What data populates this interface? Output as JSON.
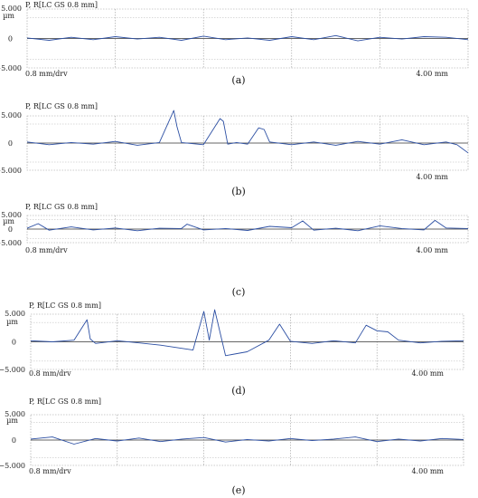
{
  "chart_data": [
    {
      "type": "line",
      "panel": "(a)",
      "title": "P, R[LC GS 0.8 mm]",
      "unit": "µm",
      "y_ticks": [
        "5.000",
        "0",
        "−5.000"
      ],
      "x_left_label": "0.8 mm/drv",
      "x_right_label": "4.00  mm",
      "xlim": [
        0,
        4.0
      ],
      "ylim": [
        -5,
        5
      ],
      "series_color": "#2c4fa3",
      "series": [
        {
          "x": [
            0,
            0.2,
            0.4,
            0.6,
            0.8,
            1.0,
            1.2,
            1.4,
            1.6,
            1.8,
            2.0,
            2.2,
            2.4,
            2.6,
            2.8,
            3.0,
            3.2,
            3.4,
            3.6,
            3.8,
            4.0
          ],
          "y": [
            0.1,
            -0.3,
            0.2,
            -0.2,
            0.3,
            -0.1,
            0.2,
            -0.3,
            0.4,
            -0.2,
            0.1,
            -0.3,
            0.3,
            -0.2,
            0.5,
            -0.4,
            0.2,
            -0.1,
            0.3,
            0.2,
            -0.2
          ]
        }
      ]
    },
    {
      "type": "line",
      "panel": "(b)",
      "title": "P, R[LC GS 0.8 mm]",
      "unit": "µm",
      "y_ticks": [
        "5.000",
        "0",
        "−5.000"
      ],
      "x_left_label": "",
      "x_right_label": "4.00  mm",
      "xlim": [
        0,
        4.0
      ],
      "ylim": [
        -5,
        5
      ],
      "series_color": "#2c4fa3",
      "series": [
        {
          "x": [
            0,
            0.2,
            0.4,
            0.6,
            0.8,
            1.0,
            1.2,
            1.33,
            1.36,
            1.4,
            1.6,
            1.75,
            1.78,
            1.82,
            1.9,
            2.0,
            2.1,
            2.15,
            2.2,
            2.4,
            2.6,
            2.8,
            3.0,
            3.2,
            3.4,
            3.6,
            3.8,
            3.9,
            4.0
          ],
          "y": [
            0.2,
            -0.3,
            0.1,
            -0.2,
            0.3,
            -0.4,
            0.1,
            6.0,
            3.0,
            0.1,
            -0.3,
            4.5,
            4.0,
            -0.2,
            0.1,
            -0.2,
            2.8,
            2.5,
            0.2,
            -0.3,
            0.2,
            -0.4,
            0.3,
            -0.2,
            0.6,
            -0.3,
            0.2,
            -0.3,
            -1.8
          ]
        }
      ]
    },
    {
      "type": "line",
      "panel": "(c)",
      "title": "P, R[LC GS 0.8 mm]",
      "unit": "µm",
      "y_ticks": [
        "5.000",
        "0",
        "−5.000"
      ],
      "x_left_label": "0.8 mm/drv",
      "x_right_label": "4.00  mm",
      "xlim": [
        0,
        4.0
      ],
      "ylim": [
        -5,
        5
      ],
      "series_color": "#2c4fa3",
      "series": [
        {
          "x": [
            0,
            0.1,
            0.2,
            0.4,
            0.6,
            0.8,
            1.0,
            1.2,
            1.4,
            1.45,
            1.6,
            1.8,
            2.0,
            2.2,
            2.4,
            2.5,
            2.6,
            2.8,
            3.0,
            3.2,
            3.4,
            3.6,
            3.7,
            3.8,
            4.0
          ],
          "y": [
            0.3,
            2.0,
            -0.4,
            0.8,
            -0.3,
            0.4,
            -0.6,
            0.3,
            0.2,
            1.8,
            -0.3,
            0.2,
            -0.5,
            1.0,
            0.5,
            3.0,
            -0.4,
            0.3,
            -0.6,
            1.2,
            0.2,
            -0.3,
            3.2,
            0.4,
            0.2
          ]
        }
      ]
    },
    {
      "type": "line",
      "panel": "(d)",
      "title": "P, R[LC GS 0.8 mm]",
      "unit": "µm",
      "y_ticks": [
        "5.000",
        "0",
        "−5.000"
      ],
      "x_left_label": "0.8 mm/drv",
      "x_right_label": "4.00  mm",
      "xlim": [
        0,
        4.0
      ],
      "ylim": [
        -5,
        5
      ],
      "series_color": "#2c4fa3",
      "series": [
        {
          "x": [
            0,
            0.2,
            0.4,
            0.52,
            0.55,
            0.6,
            0.8,
            1.0,
            1.2,
            1.5,
            1.6,
            1.65,
            1.7,
            1.8,
            2.0,
            2.2,
            2.3,
            2.4,
            2.6,
            2.8,
            3.0,
            3.1,
            3.2,
            3.3,
            3.4,
            3.6,
            3.8,
            4.0
          ],
          "y": [
            0.2,
            0.0,
            0.3,
            4.0,
            0.5,
            -0.3,
            0.2,
            -0.2,
            -0.6,
            -1.5,
            5.5,
            0.3,
            5.8,
            -2.5,
            -1.8,
            0.3,
            3.2,
            0.1,
            -0.3,
            0.2,
            -0.2,
            3.0,
            2.0,
            1.8,
            0.3,
            -0.2,
            0.1,
            0.2
          ]
        }
      ]
    },
    {
      "type": "line",
      "panel": "(e)",
      "title": "P, R[LC GS 0.8 mm]",
      "unit": "µm",
      "y_ticks": [
        "5.000",
        "0",
        "−5.000"
      ],
      "x_left_label": "0.8 mm/drv",
      "x_right_label": "4.00  mm",
      "xlim": [
        0,
        4.0
      ],
      "ylim": [
        -5,
        5
      ],
      "series_color": "#2c4fa3",
      "series": [
        {
          "x": [
            0,
            0.2,
            0.4,
            0.6,
            0.8,
            1.0,
            1.2,
            1.4,
            1.6,
            1.8,
            2.0,
            2.2,
            2.4,
            2.6,
            2.8,
            3.0,
            3.2,
            3.4,
            3.6,
            3.8,
            4.0
          ],
          "y": [
            0.2,
            0.6,
            -0.8,
            0.3,
            -0.2,
            0.4,
            -0.3,
            0.2,
            0.5,
            -0.4,
            0.1,
            -0.2,
            0.3,
            -0.1,
            0.2,
            0.6,
            -0.3,
            0.2,
            -0.2,
            0.3,
            0.1
          ]
        }
      ]
    }
  ]
}
